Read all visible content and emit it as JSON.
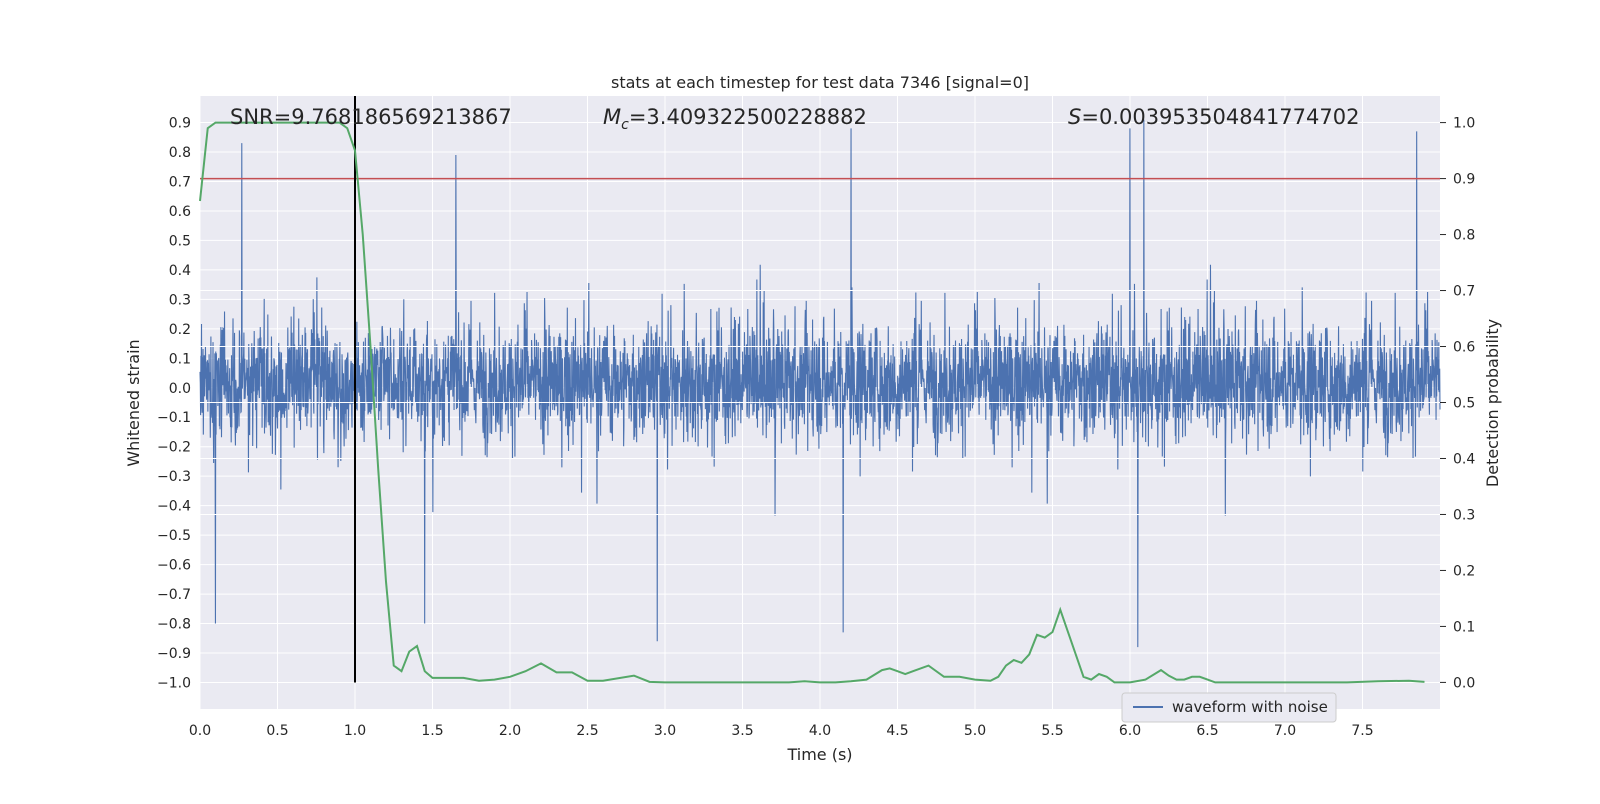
{
  "chart_data": {
    "type": "line",
    "title": "stats at each timestep for test data 7346 [signal=0]",
    "xlabel": "Time (s)",
    "ylabel": "Whitened strain",
    "y2label": "Detection probability",
    "xlim": [
      0.0,
      8.0
    ],
    "ylim": [
      -1.09,
      0.99
    ],
    "y2lim": [
      -0.0475,
      1.0475
    ],
    "xticks": [
      0.0,
      0.5,
      1.0,
      1.5,
      2.0,
      2.5,
      3.0,
      3.5,
      4.0,
      4.5,
      5.0,
      5.5,
      6.0,
      6.5,
      7.0,
      7.5
    ],
    "xtick_labels": [
      "0.0",
      "0.5",
      "1.0",
      "1.5",
      "2.0",
      "2.5",
      "3.0",
      "3.5",
      "4.0",
      "4.5",
      "5.0",
      "5.5",
      "6.0",
      "6.5",
      "7.0",
      "7.5"
    ],
    "yticks": [
      0.9,
      0.8,
      0.7,
      0.6,
      0.5,
      0.4,
      0.3,
      0.2,
      0.1,
      0.0,
      -0.1,
      -0.2,
      -0.3,
      -0.4,
      -0.5,
      -0.6,
      -0.7,
      -0.8,
      -0.9,
      -1.0
    ],
    "ytick_labels": [
      "0.9",
      "0.8",
      "0.7",
      "0.6",
      "0.5",
      "0.4",
      "0.3",
      "0.2",
      "0.1",
      "0.0",
      "−0.1",
      "−0.2",
      "−0.3",
      "−0.4",
      "−0.5",
      "−0.6",
      "−0.7",
      "−0.8",
      "−0.9",
      "−1.0"
    ],
    "y2ticks": [
      1.0,
      0.9,
      0.8,
      0.7,
      0.6,
      0.5,
      0.4,
      0.3,
      0.2,
      0.1,
      0.0
    ],
    "y2tick_labels": [
      "1.0",
      "0.9",
      "0.8",
      "0.7",
      "0.6",
      "0.5",
      "0.4",
      "0.3",
      "0.2",
      "0.1",
      "0.0"
    ],
    "annotations": {
      "snr": "SNR=9.768186569213867",
      "mc_symbol": "M",
      "mc_subscript": "c",
      "mc_value": "=3.409322500228882",
      "s_symbol": "S",
      "s_value": "=0.003953504841774702"
    },
    "threshold_line": {
      "axis": "right",
      "value": 0.9
    },
    "vertical_marker": {
      "x": 1.0
    },
    "legend": {
      "entries": [
        "waveform with noise"
      ],
      "location": "lower-right"
    },
    "series": [
      {
        "name": "waveform with noise",
        "axis": "left",
        "kind": "noise",
        "samples": 4096,
        "typical_range": [
          -0.45,
          0.5
        ],
        "extremes": [
          {
            "x": 0.27,
            "y": 0.83
          },
          {
            "x": 0.1,
            "y": -0.8
          },
          {
            "x": 1.45,
            "y": -0.8
          },
          {
            "x": 1.65,
            "y": 0.79
          },
          {
            "x": 2.95,
            "y": -0.86
          },
          {
            "x": 4.2,
            "y": 0.88
          },
          {
            "x": 4.15,
            "y": -0.83
          },
          {
            "x": 6.0,
            "y": 0.88
          },
          {
            "x": 6.05,
            "y": -0.88
          },
          {
            "x": 6.09,
            "y": 0.91
          },
          {
            "x": 7.85,
            "y": 0.87
          }
        ]
      },
      {
        "name": "detection probability",
        "axis": "right",
        "x": [
          0.0,
          0.05,
          0.1,
          0.2,
          0.3,
          0.5,
          0.7,
          0.9,
          0.95,
          1.0,
          1.05,
          1.1,
          1.15,
          1.2,
          1.25,
          1.3,
          1.35,
          1.4,
          1.45,
          1.5,
          1.55,
          1.6,
          1.7,
          1.8,
          1.9,
          2.0,
          2.1,
          2.2,
          2.25,
          2.3,
          2.4,
          2.5,
          2.6,
          2.8,
          2.9,
          3.0,
          3.2,
          3.4,
          3.6,
          3.8,
          3.9,
          4.0,
          4.1,
          4.2,
          4.3,
          4.4,
          4.45,
          4.5,
          4.55,
          4.6,
          4.7,
          4.8,
          4.9,
          5.0,
          5.1,
          5.15,
          5.2,
          5.25,
          5.3,
          5.35,
          5.4,
          5.45,
          5.5,
          5.55,
          5.6,
          5.65,
          5.7,
          5.75,
          5.8,
          5.85,
          5.9,
          6.0,
          6.1,
          6.2,
          6.25,
          6.3,
          6.35,
          6.4,
          6.45,
          6.5,
          6.55,
          6.6,
          6.7,
          6.8,
          6.9,
          7.0,
          7.2,
          7.4,
          7.6,
          7.8,
          7.9
        ],
        "values": [
          0.86,
          0.99,
          1.0,
          1.0,
          1.0,
          1.0,
          1.0,
          1.0,
          0.99,
          0.95,
          0.8,
          0.6,
          0.38,
          0.18,
          0.03,
          0.02,
          0.055,
          0.065,
          0.02,
          0.008,
          0.008,
          0.008,
          0.008,
          0.003,
          0.005,
          0.01,
          0.02,
          0.034,
          0.026,
          0.018,
          0.018,
          0.003,
          0.003,
          0.012,
          0.001,
          0.0,
          0.0,
          0.0,
          0.0,
          0.0,
          0.002,
          0.0,
          0.0,
          0.002,
          0.005,
          0.022,
          0.025,
          0.02,
          0.015,
          0.02,
          0.03,
          0.01,
          0.01,
          0.005,
          0.003,
          0.01,
          0.03,
          0.04,
          0.035,
          0.05,
          0.085,
          0.08,
          0.09,
          0.13,
          0.09,
          0.05,
          0.01,
          0.005,
          0.015,
          0.01,
          0.0,
          0.0,
          0.005,
          0.022,
          0.012,
          0.005,
          0.005,
          0.01,
          0.01,
          0.005,
          0.0,
          0.0,
          0.0,
          0.0,
          0.0,
          0.0,
          0.0,
          0.0,
          0.002,
          0.003,
          0.001
        ]
      }
    ],
    "colors": {
      "waveform": "#4c72b0",
      "probability": "#55a868",
      "threshold": "#c44e52",
      "marker": "#000000",
      "axes_bg": "#eaeaf2",
      "grid": "#ffffff"
    }
  }
}
